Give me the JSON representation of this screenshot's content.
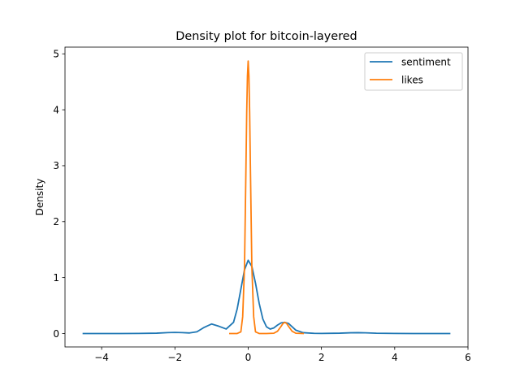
{
  "chart_data": {
    "type": "line",
    "title": "Density plot for bitcoin-layered",
    "xlabel": "",
    "ylabel": "Density",
    "xlim": [
      -5,
      6
    ],
    "ylim": [
      -0.24,
      5.12
    ],
    "xticks": [
      -4,
      -2,
      0,
      2,
      4,
      6
    ],
    "yticks": [
      0,
      1,
      2,
      3,
      4,
      5
    ],
    "grid": false,
    "legend_position": "top-right",
    "series": [
      {
        "name": "sentiment",
        "color": "#1f77b4",
        "x": [
          -4.5,
          -3.5,
          -3.0,
          -2.5,
          -2.2,
          -2.0,
          -1.8,
          -1.6,
          -1.4,
          -1.2,
          -1.0,
          -0.8,
          -0.6,
          -0.4,
          -0.3,
          -0.2,
          -0.1,
          0.0,
          0.1,
          0.2,
          0.3,
          0.4,
          0.5,
          0.6,
          0.7,
          0.8,
          0.9,
          1.0,
          1.1,
          1.2,
          1.3,
          1.5,
          1.8,
          2.0,
          2.5,
          2.8,
          3.0,
          3.2,
          3.5,
          4.0,
          4.5,
          5.0,
          5.5
        ],
        "y": [
          0.0,
          0.0,
          0.001,
          0.006,
          0.016,
          0.02,
          0.016,
          0.01,
          0.03,
          0.11,
          0.17,
          0.13,
          0.08,
          0.2,
          0.44,
          0.79,
          1.14,
          1.31,
          1.2,
          0.9,
          0.54,
          0.26,
          0.12,
          0.08,
          0.1,
          0.15,
          0.19,
          0.2,
          0.18,
          0.12,
          0.06,
          0.015,
          0.003,
          0.002,
          0.006,
          0.013,
          0.015,
          0.012,
          0.005,
          0.001,
          0.0,
          0.0,
          0.0
        ]
      },
      {
        "name": "likes",
        "color": "#ff7f0e",
        "x": [
          -0.5,
          -0.3,
          -0.2,
          -0.15,
          -0.1,
          -0.08,
          -0.06,
          -0.04,
          -0.02,
          0.0,
          0.02,
          0.04,
          0.06,
          0.08,
          0.1,
          0.15,
          0.2,
          0.3,
          0.5,
          0.7,
          0.8,
          0.9,
          0.95,
          1.0,
          1.05,
          1.1,
          1.2,
          1.3,
          1.5
        ],
        "y": [
          0.0,
          0.0,
          0.03,
          0.3,
          1.2,
          2.1,
          3.0,
          3.95,
          4.6,
          4.87,
          4.6,
          3.95,
          3.0,
          2.1,
          1.2,
          0.3,
          0.03,
          0.0,
          0.0,
          0.005,
          0.04,
          0.13,
          0.18,
          0.2,
          0.18,
          0.13,
          0.04,
          0.005,
          0.0
        ]
      }
    ]
  }
}
